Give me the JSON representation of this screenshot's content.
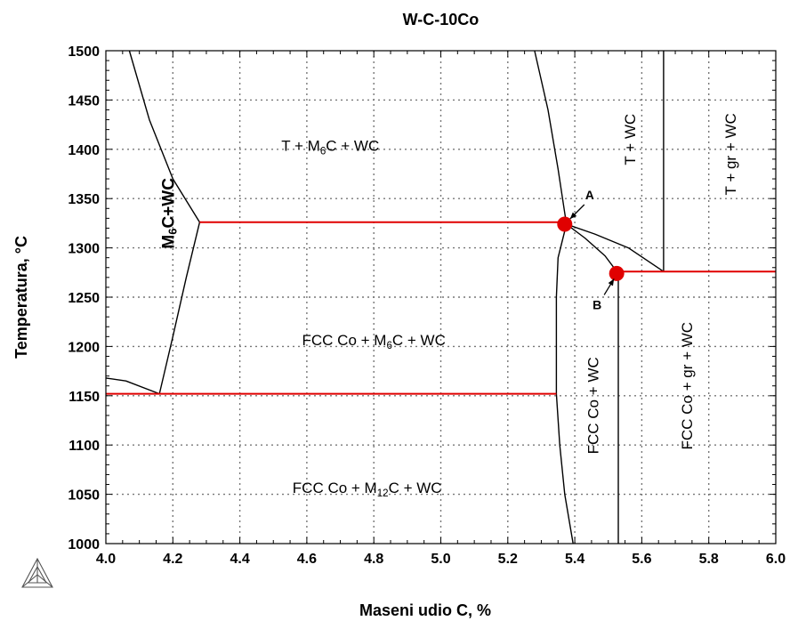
{
  "chart_data": {
    "type": "line",
    "title": "W-C-10Co",
    "xlabel": "Maseni udio C, %",
    "ylabel": "Temperatura, °C",
    "xlim": [
      4.0,
      6.0
    ],
    "ylim": [
      1000,
      1500
    ],
    "grid": true,
    "x_ticks": [
      "4.0",
      "4.2",
      "4.4",
      "4.6",
      "4.8",
      "5.0",
      "5.2",
      "5.4",
      "5.6",
      "5.8",
      "6.0"
    ],
    "y_ticks": [
      "1000",
      "1050",
      "1100",
      "1150",
      "1200",
      "1250",
      "1300",
      "1350",
      "1400",
      "1450",
      "1500"
    ],
    "colors": {
      "phase_boundary": "#000000",
      "invariant": "#e00000",
      "grid": "#777777"
    },
    "series": [
      {
        "kind": "boundary",
        "x": [
          4.07,
          4.13,
          4.2,
          4.28
        ],
        "y": [
          1500,
          1430,
          1370,
          1326
        ]
      },
      {
        "kind": "boundary",
        "x": [
          4.28,
          4.24,
          4.2,
          4.16
        ],
        "y": [
          1326,
          1270,
          1210,
          1152
        ]
      },
      {
        "kind": "boundary",
        "x": [
          4.0,
          4.06,
          4.16
        ],
        "y": [
          1168,
          1165,
          1152
        ]
      },
      {
        "kind": "boundary",
        "x": [
          5.28,
          5.32,
          5.35,
          5.375
        ],
        "y": [
          1500,
          1440,
          1380,
          1324
        ]
      },
      {
        "kind": "boundary",
        "x": [
          5.375,
          5.35,
          5.345,
          5.345
        ],
        "y": [
          1324,
          1290,
          1250,
          1152
        ]
      },
      {
        "kind": "boundary",
        "x": [
          5.345,
          5.355,
          5.37,
          5.395
        ],
        "y": [
          1152,
          1100,
          1050,
          1000
        ]
      },
      {
        "kind": "boundary",
        "x": [
          5.375,
          5.43,
          5.49,
          5.53
        ],
        "y": [
          1324,
          1310,
          1292,
          1274
        ]
      },
      {
        "kind": "boundary",
        "x": [
          5.375,
          5.46,
          5.56,
          5.665
        ],
        "y": [
          1324,
          1314,
          1300,
          1276
        ]
      },
      {
        "kind": "boundary",
        "x": [
          5.665,
          5.665
        ],
        "y": [
          1276,
          1500
        ]
      },
      {
        "kind": "boundary",
        "x": [
          5.53,
          5.53
        ],
        "y": [
          1274,
          1000
        ]
      },
      {
        "kind": "invariant",
        "x": [
          4.28,
          5.375
        ],
        "y": [
          1326,
          1326
        ]
      },
      {
        "kind": "invariant",
        "x": [
          4.0,
          5.345
        ],
        "y": [
          1152,
          1152
        ]
      },
      {
        "kind": "invariant",
        "x": [
          5.53,
          6.0
        ],
        "y": [
          1276,
          1276
        ]
      }
    ],
    "points": [
      {
        "label": "A",
        "x": 5.37,
        "y": 1324
      },
      {
        "label": "B",
        "x": 5.525,
        "y": 1274
      }
    ],
    "regions": [
      {
        "parts": [
          [
            "T + M",
            ""
          ],
          [
            "6",
            "sub"
          ],
          [
            "C + WC",
            ""
          ]
        ],
        "x": 4.67,
        "y": 1402,
        "style": "normal"
      },
      {
        "parts": [
          [
            "FCC Co + M",
            ""
          ],
          [
            "6",
            "sub"
          ],
          [
            "C + WC",
            ""
          ]
        ],
        "x": 4.8,
        "y": 1205,
        "style": "normal"
      },
      {
        "parts": [
          [
            "FCC Co + M",
            ""
          ],
          [
            "12",
            "sub"
          ],
          [
            "C + WC",
            ""
          ]
        ],
        "x": 4.78,
        "y": 1055,
        "style": "normal"
      },
      {
        "parts": [
          [
            "M",
            ""
          ],
          [
            "6",
            "sub"
          ],
          [
            "C+WC",
            ""
          ]
        ],
        "x": 4.19,
        "y": 1335,
        "style": "bold",
        "rotate": -90
      },
      {
        "parts": [
          [
            "T + WC",
            ""
          ]
        ],
        "x": 5.57,
        "y": 1410,
        "style": "normal",
        "rotate": -90
      },
      {
        "parts": [
          [
            "T + gr + WC",
            ""
          ]
        ],
        "x": 5.87,
        "y": 1395,
        "style": "normal",
        "rotate": -90
      },
      {
        "parts": [
          [
            "FCC Co + WC",
            ""
          ]
        ],
        "x": 5.46,
        "y": 1140,
        "style": "normal",
        "rotate": -90
      },
      {
        "parts": [
          [
            "FCC Co + gr + WC",
            ""
          ]
        ],
        "x": 5.74,
        "y": 1160,
        "style": "normal",
        "rotate": -90
      }
    ]
  }
}
